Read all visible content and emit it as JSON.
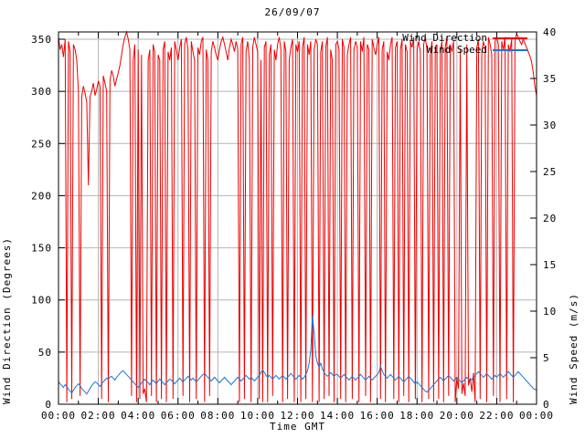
{
  "title": "26/09/07",
  "colors": {
    "background": "#ffffff",
    "grid": "#b4b4b4",
    "axis": "#000000",
    "wind_direction": "#ee0000",
    "wind_speed": "#1e74d2"
  },
  "legend": {
    "entries": [
      {
        "label": "Wind Direction",
        "color": "#ee0000"
      },
      {
        "label": "Wind Speed",
        "color": "#1e74d2"
      }
    ]
  },
  "chart_data": {
    "type": "line",
    "title": "26/09/07",
    "xlabel": "Time GMT",
    "ylabel_left": "Wind Direction (Degrees)",
    "ylabel_right": "Wind Speed (m/s)",
    "grid": true,
    "legend_position": "inside-top-right",
    "x_range_hours": [
      0,
      24
    ],
    "x_major_tick_hours": 2,
    "x_minor_tick_hours": 1,
    "x_tick_labels": [
      "00:00",
      "02:00",
      "04:00",
      "06:00",
      "08:00",
      "10:00",
      "12:00",
      "14:00",
      "16:00",
      "18:00",
      "20:00",
      "22:00",
      "00:00"
    ],
    "y_left_range": [
      0,
      357
    ],
    "y_left_ticks": [
      0,
      50,
      100,
      150,
      200,
      250,
      300,
      350
    ],
    "y_right_range": [
      0,
      40
    ],
    "y_right_ticks": [
      0,
      5,
      10,
      15,
      20,
      25,
      30,
      35,
      40
    ],
    "sample_interval_minutes": 5,
    "series": [
      {
        "name": "Wind Direction",
        "axis": "left",
        "color": "#ee0000",
        "values": [
          352,
          340,
          345,
          333,
          350,
          2,
          348,
          338,
          5,
          345,
          340,
          330,
          300,
          8,
          295,
          305,
          298,
          290,
          210,
          295,
          300,
          308,
          296,
          302,
          310,
          305,
          5,
          315,
          308,
          300,
          2,
          310,
          320,
          315,
          305,
          312,
          318,
          325,
          335,
          345,
          352,
          357,
          350,
          340,
          8,
          330,
          345,
          2,
          340,
          5,
          335,
          10,
          15,
          2,
          330,
          340,
          8,
          345,
          338,
          2,
          335,
          330,
          5,
          340,
          348,
          2,
          338,
          330,
          342,
          5,
          348,
          340,
          330,
          342,
          350,
          8,
          345,
          352,
          340,
          2,
          348,
          338,
          330,
          5,
          342,
          335,
          348,
          352,
          2,
          340,
          330,
          8,
          338,
          348,
          342,
          335,
          330,
          340,
          348,
          352,
          345,
          338,
          330,
          342,
          350,
          345,
          338,
          348,
          340,
          2,
          345,
          352,
          5,
          338,
          348,
          330,
          2,
          342,
          352,
          345,
          338,
          5,
          330,
          2,
          342,
          348,
          2,
          335,
          345,
          8,
          340,
          330,
          345,
          352,
          340,
          2,
          348,
          338,
          5,
          330,
          342,
          350,
          2,
          345,
          338,
          348,
          2,
          342,
          352,
          5,
          345,
          335,
          348,
          2,
          340,
          350,
          345,
          2,
          338,
          348,
          5,
          342,
          352,
          8,
          340,
          330,
          2,
          345,
          348,
          340,
          5,
          350,
          342,
          2,
          335,
          345,
          352,
          5,
          340,
          348,
          342,
          2,
          348,
          338,
          352,
          8,
          345,
          340,
          2,
          350,
          342,
          335,
          345,
          352,
          5,
          340,
          348,
          2,
          338,
          330,
          345,
          352,
          5,
          342,
          348,
          2,
          340,
          350,
          8,
          345,
          338,
          2,
          348,
          342,
          352,
          5,
          340,
          348,
          338,
          2,
          345,
          352,
          340,
          5,
          335,
          348,
          2,
          342,
          345,
          5,
          338,
          348,
          2,
          342,
          352,
          8,
          345,
          338,
          348,
          2,
          25,
          15,
          340,
          10,
          20,
          8,
          345,
          18,
          25,
          12,
          30,
          2,
          342,
          350,
          5,
          338,
          348,
          340,
          2,
          352,
          345,
          335,
          8,
          348,
          352,
          345,
          2,
          348,
          340,
          352,
          5,
          345,
          338,
          350,
          2,
          348,
          355,
          352,
          348,
          345,
          350,
          346,
          342,
          338,
          334,
          328,
          318,
          305,
          296
        ]
      },
      {
        "name": "Wind Speed",
        "axis": "right",
        "color": "#1e74d2",
        "values": [
          2.4,
          2.2,
          2.0,
          1.8,
          2.1,
          1.9,
          1.6,
          1.4,
          1.2,
          1.5,
          1.8,
          2.0,
          2.2,
          2.0,
          1.7,
          1.5,
          1.3,
          1.1,
          1.4,
          1.7,
          2.0,
          2.2,
          2.4,
          2.3,
          2.1,
          1.9,
          2.2,
          2.4,
          2.6,
          2.8,
          2.7,
          2.9,
          3.0,
          2.8,
          2.6,
          2.9,
          3.1,
          3.3,
          3.5,
          3.6,
          3.4,
          3.2,
          3.0,
          2.8,
          2.6,
          2.4,
          2.2,
          2.0,
          1.8,
          2.0,
          2.3,
          2.5,
          2.7,
          2.5,
          2.3,
          2.1,
          2.4,
          2.6,
          2.4,
          2.2,
          2.5,
          2.7,
          2.5,
          2.3,
          2.1,
          2.3,
          2.5,
          2.7,
          2.6,
          2.4,
          2.2,
          2.4,
          2.6,
          2.8,
          2.6,
          2.4,
          2.6,
          2.8,
          3.0,
          2.8,
          2.6,
          2.8,
          2.6,
          2.4,
          2.6,
          2.8,
          3.0,
          3.2,
          3.3,
          3.1,
          2.9,
          2.7,
          2.5,
          2.7,
          2.9,
          2.7,
          2.5,
          2.3,
          2.5,
          2.7,
          2.9,
          2.7,
          2.5,
          2.3,
          2.1,
          2.3,
          2.5,
          2.7,
          2.9,
          2.7,
          2.5,
          2.7,
          2.9,
          3.1,
          2.9,
          2.7,
          2.9,
          2.7,
          2.5,
          2.7,
          2.9,
          3.1,
          3.4,
          3.7,
          3.4,
          3.1,
          2.9,
          3.1,
          2.9,
          2.7,
          2.9,
          3.1,
          2.9,
          2.7,
          2.9,
          3.1,
          2.9,
          2.7,
          2.9,
          3.1,
          3.3,
          3.1,
          2.9,
          2.7,
          2.9,
          3.1,
          2.9,
          2.7,
          2.9,
          3.2,
          3.6,
          4.4,
          5.8,
          9.5,
          7.6,
          5.2,
          4.4,
          4.0,
          4.4,
          3.8,
          3.4,
          3.2,
          3.0,
          3.2,
          3.4,
          3.2,
          3.0,
          3.2,
          3.2,
          3.0,
          2.8,
          3.0,
          3.2,
          3.0,
          2.8,
          2.6,
          2.8,
          3.0,
          2.8,
          2.6,
          2.8,
          3.0,
          3.2,
          3.0,
          2.8,
          2.6,
          2.8,
          3.0,
          2.8,
          2.6,
          2.8,
          3.0,
          3.2,
          3.4,
          4.1,
          3.6,
          3.2,
          3.0,
          2.8,
          3.0,
          3.2,
          3.0,
          2.8,
          2.6,
          2.8,
          3.0,
          2.8,
          2.6,
          2.4,
          2.6,
          2.8,
          3.0,
          2.8,
          2.6,
          2.4,
          2.2,
          2.4,
          2.2,
          2.0,
          1.8,
          1.6,
          1.4,
          1.3,
          1.5,
          1.7,
          1.9,
          2.1,
          2.3,
          2.5,
          2.7,
          2.9,
          2.7,
          2.5,
          2.7,
          2.9,
          3.1,
          2.9,
          2.7,
          2.5,
          2.7,
          2.9,
          2.7,
          2.5,
          2.3,
          2.5,
          2.7,
          2.9,
          2.7,
          2.5,
          2.7,
          2.9,
          3.1,
          3.3,
          3.5,
          3.3,
          3.1,
          2.9,
          3.1,
          3.3,
          3.1,
          2.9,
          2.7,
          2.9,
          3.1,
          2.9,
          3.1,
          3.3,
          3.1,
          2.9,
          3.1,
          3.3,
          3.5,
          3.3,
          3.1,
          2.9,
          3.1,
          3.3,
          3.5,
          3.3,
          3.1,
          2.9,
          2.7,
          2.5,
          2.3,
          2.1,
          1.9,
          1.7,
          1.6,
          1.5
        ]
      }
    ]
  }
}
